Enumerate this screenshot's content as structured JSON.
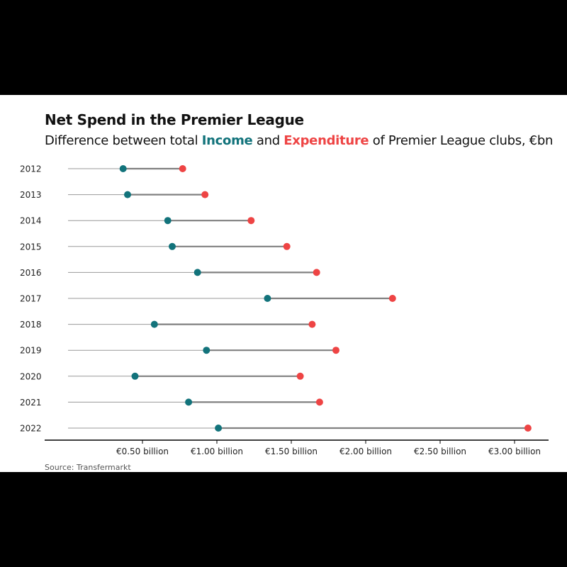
{
  "header": {
    "title": "Net Spend in the Premier League",
    "subtitle_pre": "Difference between total ",
    "subtitle_income": "Income",
    "subtitle_mid": " and ",
    "subtitle_expenditure": "Expenditure",
    "subtitle_post": " of Premier League clubs, €bn"
  },
  "source": "Source: Transfermarkt",
  "colors": {
    "income": "#12737b",
    "expenditure": "#ee4444",
    "segment": "#808080",
    "guide": "#999999",
    "axis": "#000000"
  },
  "chart_data": {
    "type": "dumbbell",
    "categories": [
      "2012",
      "2013",
      "2014",
      "2015",
      "2016",
      "2017",
      "2018",
      "2019",
      "2020",
      "2021",
      "2022"
    ],
    "series": [
      {
        "name": "Income",
        "values": [
          0.37,
          0.4,
          0.67,
          0.7,
          0.87,
          1.34,
          0.58,
          0.93,
          0.45,
          0.81,
          1.01
        ]
      },
      {
        "name": "Expenditure",
        "values": [
          0.77,
          0.92,
          1.23,
          1.47,
          1.67,
          2.18,
          1.64,
          1.8,
          1.56,
          1.69,
          3.09
        ]
      }
    ],
    "xlim": [
      0,
      3.18
    ],
    "x_ticks": [
      0.5,
      1.0,
      1.5,
      2.0,
      2.5,
      3.0
    ],
    "x_tick_labels": [
      "€0.50 billion",
      "€1.00 billion",
      "€1.50 billion",
      "€2.00 billion",
      "€2.50 billion",
      "€3.00 billion"
    ],
    "grid": false,
    "legend": "in-subtitle"
  }
}
